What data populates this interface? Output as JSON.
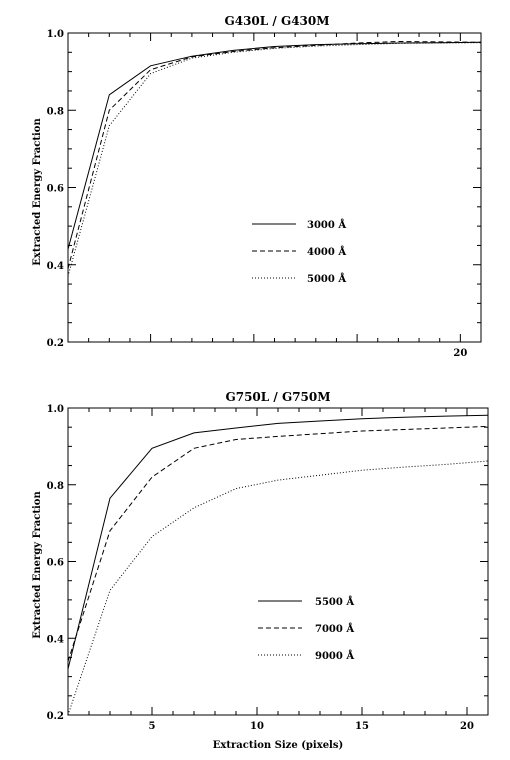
{
  "chart_data": [
    {
      "type": "line",
      "title": "G430L / G430M",
      "xlabel": "",
      "ylabel": "Extracted Energy Fraction",
      "xlim": [
        1,
        21
      ],
      "ylim": [
        0.2,
        1.0
      ],
      "xtick_labels": [
        {
          "x": 20,
          "label": "20"
        }
      ],
      "ytick_labels": [
        {
          "y": 0.2,
          "label": "0.2"
        },
        {
          "y": 0.4,
          "label": "0.4"
        },
        {
          "y": 0.6,
          "label": "0.6"
        },
        {
          "y": 0.8,
          "label": "0.8"
        },
        {
          "y": 1.0,
          "label": "1.0"
        }
      ],
      "legend_placement": "center",
      "series": [
        {
          "name": "3000 Å",
          "style": "solid",
          "x": [
            1,
            3,
            5,
            7,
            9,
            11,
            13,
            15,
            17,
            19,
            21
          ],
          "y": [
            0.44,
            0.84,
            0.915,
            0.94,
            0.955,
            0.965,
            0.97,
            0.972,
            0.974,
            0.975,
            0.976
          ]
        },
        {
          "name": "4000 Å",
          "style": "dashed",
          "x": [
            1,
            3,
            5,
            7,
            9,
            11,
            13,
            15,
            17,
            19,
            21
          ],
          "y": [
            0.39,
            0.8,
            0.905,
            0.938,
            0.952,
            0.962,
            0.968,
            0.974,
            0.978,
            0.977,
            0.976
          ]
        },
        {
          "name": "5000 Å",
          "style": "dotted",
          "x": [
            1,
            3,
            5,
            7,
            9,
            11,
            13,
            15,
            17,
            19,
            21
          ],
          "y": [
            0.37,
            0.76,
            0.895,
            0.935,
            0.95,
            0.96,
            0.966,
            0.97,
            0.973,
            0.974,
            0.975
          ]
        }
      ]
    },
    {
      "type": "line",
      "title": "G750L / G750M",
      "xlabel": "Extraction Size (pixels)",
      "ylabel": "Extracted Energy Fraction",
      "xlim": [
        1,
        21
      ],
      "ylim": [
        0.2,
        1.0
      ],
      "xtick_labels": [
        {
          "x": 5,
          "label": "5"
        },
        {
          "x": 10,
          "label": "10"
        },
        {
          "x": 15,
          "label": "15"
        },
        {
          "x": 20,
          "label": "20"
        }
      ],
      "ytick_labels": [
        {
          "y": 0.2,
          "label": "0.2"
        },
        {
          "y": 0.4,
          "label": "0.4"
        },
        {
          "y": 0.6,
          "label": "0.6"
        },
        {
          "y": 0.8,
          "label": "0.8"
        },
        {
          "y": 1.0,
          "label": "1.0"
        }
      ],
      "legend_placement": "center-right",
      "series": [
        {
          "name": "5500 Å",
          "style": "solid",
          "x": [
            1,
            3,
            5,
            7,
            9,
            11,
            13,
            15,
            17,
            19,
            21
          ],
          "y": [
            0.32,
            0.765,
            0.895,
            0.935,
            0.948,
            0.96,
            0.966,
            0.972,
            0.976,
            0.979,
            0.981
          ]
        },
        {
          "name": "7000 Å",
          "style": "dashed",
          "x": [
            1,
            3,
            5,
            7,
            9,
            11,
            13,
            15,
            17,
            19,
            21
          ],
          "y": [
            0.34,
            0.68,
            0.82,
            0.895,
            0.918,
            0.926,
            0.933,
            0.94,
            0.944,
            0.948,
            0.952
          ]
        },
        {
          "name": "9000 Å",
          "style": "dotted",
          "x": [
            1,
            3,
            5,
            7,
            9,
            11,
            13,
            15,
            17,
            19,
            21
          ],
          "y": [
            0.2,
            0.525,
            0.665,
            0.74,
            0.79,
            0.812,
            0.825,
            0.838,
            0.846,
            0.853,
            0.862
          ]
        }
      ]
    }
  ]
}
